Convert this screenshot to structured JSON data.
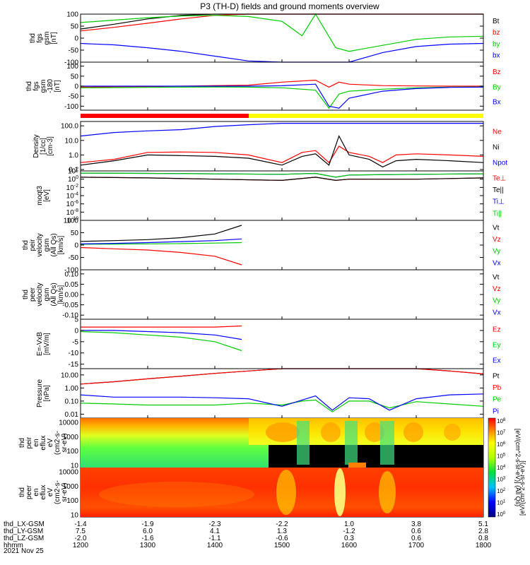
{
  "title": "P3 (TH-D) fields and ground moments overview",
  "date_label": "2021 Nov 25",
  "footer_rows": [
    {
      "label": "thd_LX-GSM",
      "values": [
        "-1.4",
        "-1.9",
        "-2.3",
        "-2.2",
        "1.0",
        "3.8",
        "5.1"
      ]
    },
    {
      "label": "thd_LY-GSM",
      "values": [
        "7.5",
        "6.0",
        "4.1",
        "1.3",
        "-1.2",
        "0.6",
        "2.8"
      ]
    },
    {
      "label": "thd_LZ-GSM",
      "values": [
        "-2.0",
        "-1.6",
        "-1.1",
        "-0.6",
        "0.3",
        "0.6",
        "0.8"
      ]
    },
    {
      "label": "hhmm",
      "values": [
        "1200",
        "1300",
        "1400",
        "1500",
        "1600",
        "1700",
        "1800"
      ]
    }
  ],
  "colorbar_label": "[eV/(cm^2-s-sr-eV)]",
  "colorbar_right_label": "[eV/(cm^2-s-sr-eV)] (All Qs)",
  "colorbar_ticks": [
    "10^8",
    "10^7",
    "10^6",
    "10^5",
    "10^4",
    "10^3",
    "10^2",
    "10^1",
    "10^0"
  ],
  "colors": {
    "black": "#000000",
    "red": "#ff0000",
    "green": "#00cc00",
    "blue": "#0000ff",
    "yellow": "#ffff00"
  },
  "chart_data": [
    {
      "type": "line",
      "ylabel": [
        "thd",
        "fgs",
        "gsm",
        "[nT]"
      ],
      "yticks": [
        "100",
        "50",
        "0",
        "-50",
        "-100"
      ],
      "ylim": [
        -100,
        100
      ],
      "legend": [
        {
          "name": "Bt",
          "color": "#000000"
        },
        {
          "name": "bz",
          "color": "#ff0000"
        },
        {
          "name": "by",
          "color": "#00cc00"
        },
        {
          "name": "bx",
          "color": "#0000ff"
        }
      ],
      "x": [
        12.0,
        12.5,
        13.0,
        13.5,
        14.0,
        14.5,
        15.0,
        15.3,
        15.5,
        15.8,
        16.0,
        16.5,
        17.0,
        17.5,
        18.0
      ],
      "series": [
        {
          "name": "Bt",
          "color": "#000000",
          "values": [
            38,
            58,
            80,
            95,
            100,
            100,
            100,
            100,
            100,
            100,
            100,
            100,
            100,
            100,
            100
          ]
        },
        {
          "name": "bz",
          "color": "#ff0000",
          "values": [
            30,
            45,
            62,
            80,
            95,
            100,
            100,
            100,
            100,
            100,
            100,
            100,
            100,
            100,
            100
          ]
        },
        {
          "name": "by",
          "color": "#00cc00",
          "values": [
            65,
            75,
            85,
            92,
            95,
            90,
            70,
            10,
            100,
            -40,
            -55,
            -30,
            -5,
            5,
            8
          ]
        },
        {
          "name": "bx",
          "color": "#0000ff",
          "values": [
            -22,
            -28,
            -40,
            -55,
            -75,
            -95,
            -100,
            -100,
            -100,
            -100,
            -100,
            -60,
            -35,
            -25,
            -22
          ]
        }
      ]
    },
    {
      "type": "line",
      "ylabel": [
        "thd",
        "fgs",
        "gsm",
        "-180",
        "[nT]"
      ],
      "yticks": [
        "100",
        "50",
        "0",
        "-50",
        "-100"
      ],
      "ylim": [
        -120,
        120
      ],
      "legend": [
        {
          "name": "Bz",
          "color": "#ff0000"
        },
        {
          "name": "By",
          "color": "#00cc00"
        },
        {
          "name": "Bx",
          "color": "#0000ff"
        }
      ],
      "x": [
        12.0,
        12.5,
        13.0,
        13.5,
        14.0,
        14.5,
        15.0,
        15.5,
        15.7,
        15.85,
        16.0,
        16.5,
        17.0,
        17.5,
        18.0
      ],
      "series": [
        {
          "name": "Bz",
          "color": "#ff0000",
          "values": [
            -5,
            -3,
            -2,
            0,
            3,
            5,
            20,
            30,
            -5,
            20,
            10,
            3,
            1,
            0,
            0
          ]
        },
        {
          "name": "By",
          "color": "#00cc00",
          "values": [
            -8,
            -7,
            -6,
            -5,
            -4,
            -5,
            -8,
            -20,
            -110,
            -40,
            -25,
            -15,
            -8,
            -5,
            -4
          ]
        },
        {
          "name": "Bx",
          "color": "#0000ff",
          "values": [
            0,
            0,
            0,
            0,
            0,
            0,
            2,
            10,
            -100,
            -110,
            -60,
            -25,
            -12,
            -6,
            -5
          ]
        }
      ]
    },
    {
      "type": "line",
      "ylabel": [
        "Density",
        "[1/cc]",
        "[cm-3]"
      ],
      "yticks": [
        "100.0",
        "10.0",
        "1.0",
        "0.1"
      ],
      "ylim": [
        0.08,
        200
      ],
      "yscale": "log",
      "legend": [
        {
          "name": "Ne",
          "color": "#ff0000"
        },
        {
          "name": "Ni",
          "color": "#000000"
        },
        {
          "name": "Npot",
          "color": "#0000ff"
        }
      ],
      "x": [
        12.0,
        12.5,
        13.0,
        13.5,
        14.0,
        14.5,
        15.0,
        15.3,
        15.5,
        15.7,
        15.85,
        16.0,
        16.3,
        16.5,
        16.7,
        17.0,
        17.5,
        18.0
      ],
      "series": [
        {
          "name": "Ne",
          "color": "#ff0000",
          "values": [
            0.3,
            0.5,
            1.5,
            1.6,
            1.5,
            1.0,
            0.3,
            1.5,
            2.0,
            0.3,
            4.0,
            1.5,
            0.8,
            0.3,
            1.0,
            1.2,
            1.0,
            0.8
          ]
        },
        {
          "name": "Ni",
          "color": "#000000",
          "values": [
            0.2,
            0.4,
            1.0,
            0.9,
            0.8,
            0.6,
            0.2,
            0.8,
            1.2,
            0.2,
            20,
            1.0,
            0.5,
            0.15,
            0.4,
            0.5,
            0.4,
            0.3
          ]
        },
        {
          "name": "Npot",
          "color": "#0000ff",
          "values": [
            20,
            35,
            45,
            55,
            90,
            120,
            150,
            150,
            150,
            150,
            150,
            150,
            150,
            150,
            150,
            150,
            150,
            150
          ]
        }
      ]
    },
    {
      "type": "line",
      "ylabel": [
        "moqt3",
        "[eV]"
      ],
      "yticks": [
        "10^2",
        "10^0",
        "10^-2",
        "10^-4",
        "10^-6",
        "10^-8",
        "10^-10"
      ],
      "ylim": [
        1e-10,
        100
      ],
      "yscale": "log",
      "legend": [
        {
          "name": "Te⊥",
          "color": "#ff0000"
        },
        {
          "name": "Te||",
          "color": "#000000"
        },
        {
          "name": "Ti⊥",
          "color": "#0000ff"
        },
        {
          "name": "Ti||",
          "color": "#00cc00"
        }
      ],
      "x": [
        12.0,
        13.0,
        14.0,
        15.0,
        15.5,
        15.8,
        16.0,
        17.0,
        18.0
      ],
      "series": [
        {
          "name": "Te⊥",
          "color": "#ff0000",
          "values": [
            3,
            2,
            1,
            0.5,
            3,
            0.5,
            1,
            1,
            2
          ]
        },
        {
          "name": "Te||",
          "color": "#000000",
          "values": [
            3,
            2,
            1,
            0.5,
            3,
            0.5,
            1,
            1,
            2
          ]
        },
        {
          "name": "Ti⊥",
          "color": "#0000ff",
          "values": [
            30,
            25,
            20,
            15,
            25,
            3,
            10,
            15,
            20
          ]
        },
        {
          "name": "Ti||",
          "color": "#00cc00",
          "values": [
            30,
            25,
            20,
            15,
            25,
            3,
            10,
            15,
            20
          ]
        }
      ]
    },
    {
      "type": "line",
      "ylabel": [
        "thd",
        "peir",
        "velocity",
        "gsm",
        "(All Qs)",
        "[km/s]"
      ],
      "yticks": [
        "100",
        "50",
        "0",
        "-50",
        "-100"
      ],
      "ylim": [
        -100,
        100
      ],
      "legend": [
        {
          "name": "Vt",
          "color": "#000000"
        },
        {
          "name": "Vz",
          "color": "#ff0000"
        },
        {
          "name": "Vy",
          "color": "#00cc00"
        },
        {
          "name": "Vx",
          "color": "#0000ff"
        }
      ],
      "x": [
        12.0,
        12.5,
        13.0,
        13.5,
        14.0,
        14.4
      ],
      "series": [
        {
          "name": "Vt",
          "color": "#000000",
          "values": [
            15,
            18,
            22,
            30,
            45,
            80
          ]
        },
        {
          "name": "Vz",
          "color": "#ff0000",
          "values": [
            -10,
            -15,
            -20,
            -30,
            -45,
            -80
          ]
        },
        {
          "name": "Vy",
          "color": "#00cc00",
          "values": [
            3,
            4,
            5,
            6,
            8,
            10
          ]
        },
        {
          "name": "Vx",
          "color": "#0000ff",
          "values": [
            5,
            7,
            10,
            14,
            18,
            25
          ]
        }
      ]
    },
    {
      "type": "line",
      "ylabel": [
        "thd",
        "peer",
        "velocity",
        "gsm",
        "(All Qs)",
        "[km/s]"
      ],
      "yticks": [
        "0.10",
        "0.05",
        "0.00",
        "-0.05",
        "-0.10"
      ],
      "ylim": [
        -0.12,
        0.12
      ],
      "legend": [
        {
          "name": "Vt",
          "color": "#000000"
        },
        {
          "name": "Vz",
          "color": "#ff0000"
        },
        {
          "name": "Vy",
          "color": "#00cc00"
        },
        {
          "name": "Vx",
          "color": "#0000ff"
        }
      ],
      "x": [],
      "series": []
    },
    {
      "type": "line",
      "ylabel": [
        "E=-VxB",
        "[mV/m]"
      ],
      "yticks": [
        "5",
        "0",
        "-5",
        "-10",
        "-15"
      ],
      "ylim": [
        -17,
        5
      ],
      "legend": [
        {
          "name": "Ez",
          "color": "#ff0000"
        },
        {
          "name": "Ey",
          "color": "#00cc00"
        },
        {
          "name": "Ex",
          "color": "#0000ff"
        }
      ],
      "x": [
        12.0,
        12.5,
        13.0,
        13.5,
        14.0,
        14.4
      ],
      "series": [
        {
          "name": "Ez",
          "color": "#ff0000",
          "values": [
            1.5,
            1.5,
            1.5,
            1.5,
            1.5,
            2
          ]
        },
        {
          "name": "Ey",
          "color": "#00cc00",
          "values": [
            -0.5,
            -1,
            -2,
            -3,
            -5,
            -9
          ]
        },
        {
          "name": "Ex",
          "color": "#0000ff",
          "values": [
            0,
            0,
            -0.5,
            -1,
            -2,
            -4
          ]
        }
      ]
    },
    {
      "type": "line",
      "ylabel": [
        "Pressure",
        "[nPa]"
      ],
      "yticks": [
        "10.00",
        "1.00",
        "0.10",
        "0.01"
      ],
      "ylim": [
        0.005,
        30
      ],
      "yscale": "log",
      "legend": [
        {
          "name": "Pt",
          "color": "#000000"
        },
        {
          "name": "Pb",
          "color": "#ff0000"
        },
        {
          "name": "Pe",
          "color": "#00cc00"
        },
        {
          "name": "Pi",
          "color": "#0000ff"
        }
      ],
      "x": [
        12.0,
        12.5,
        13.0,
        13.5,
        14.0,
        14.5,
        15.0,
        15.3,
        15.5,
        15.75,
        16.0,
        16.3,
        16.6,
        17.0,
        17.5,
        18.0
      ],
      "series": [
        {
          "name": "Pt",
          "color": "#000000",
          "values": [
            2,
            3,
            5,
            8,
            13,
            20,
            30,
            30,
            30,
            30,
            30,
            30,
            30,
            30,
            20,
            12
          ]
        },
        {
          "name": "Pb",
          "color": "#ff0000",
          "values": [
            2,
            3,
            5,
            8,
            13,
            20,
            30,
            30,
            30,
            30,
            30,
            30,
            30,
            30,
            20,
            12
          ]
        },
        {
          "name": "Pe",
          "color": "#00cc00",
          "values": [
            0.07,
            0.06,
            0.05,
            0.05,
            0.05,
            0.07,
            0.05,
            0.1,
            0.12,
            0.015,
            0.1,
            0.1,
            0.03,
            0.09,
            0.06,
            0.04
          ]
        },
        {
          "name": "Pi",
          "color": "#0000ff",
          "values": [
            0.3,
            0.2,
            0.2,
            0.2,
            0.18,
            0.15,
            0.04,
            0.12,
            0.25,
            0.02,
            0.18,
            0.15,
            0.02,
            0.15,
            0.3,
            0.35
          ]
        }
      ]
    },
    {
      "type": "heatmap",
      "ylabel": [
        "thd",
        "peir",
        "en",
        "eflux",
        "eV",
        "(cm2-s-",
        "sr-eV)"
      ],
      "yticks": [
        "10000",
        "1000",
        "100",
        "10"
      ],
      "ylim": [
        7,
        20000
      ],
      "yscale": "log"
    },
    {
      "type": "heatmap",
      "ylabel": [
        "thd",
        "peer",
        "en",
        "eflux",
        "eV",
        "(cm2-s-",
        "sr-eV)"
      ],
      "yticks": [
        "10000",
        "1000",
        "100",
        "10"
      ],
      "ylim": [
        7,
        20000
      ],
      "yscale": "log"
    }
  ]
}
